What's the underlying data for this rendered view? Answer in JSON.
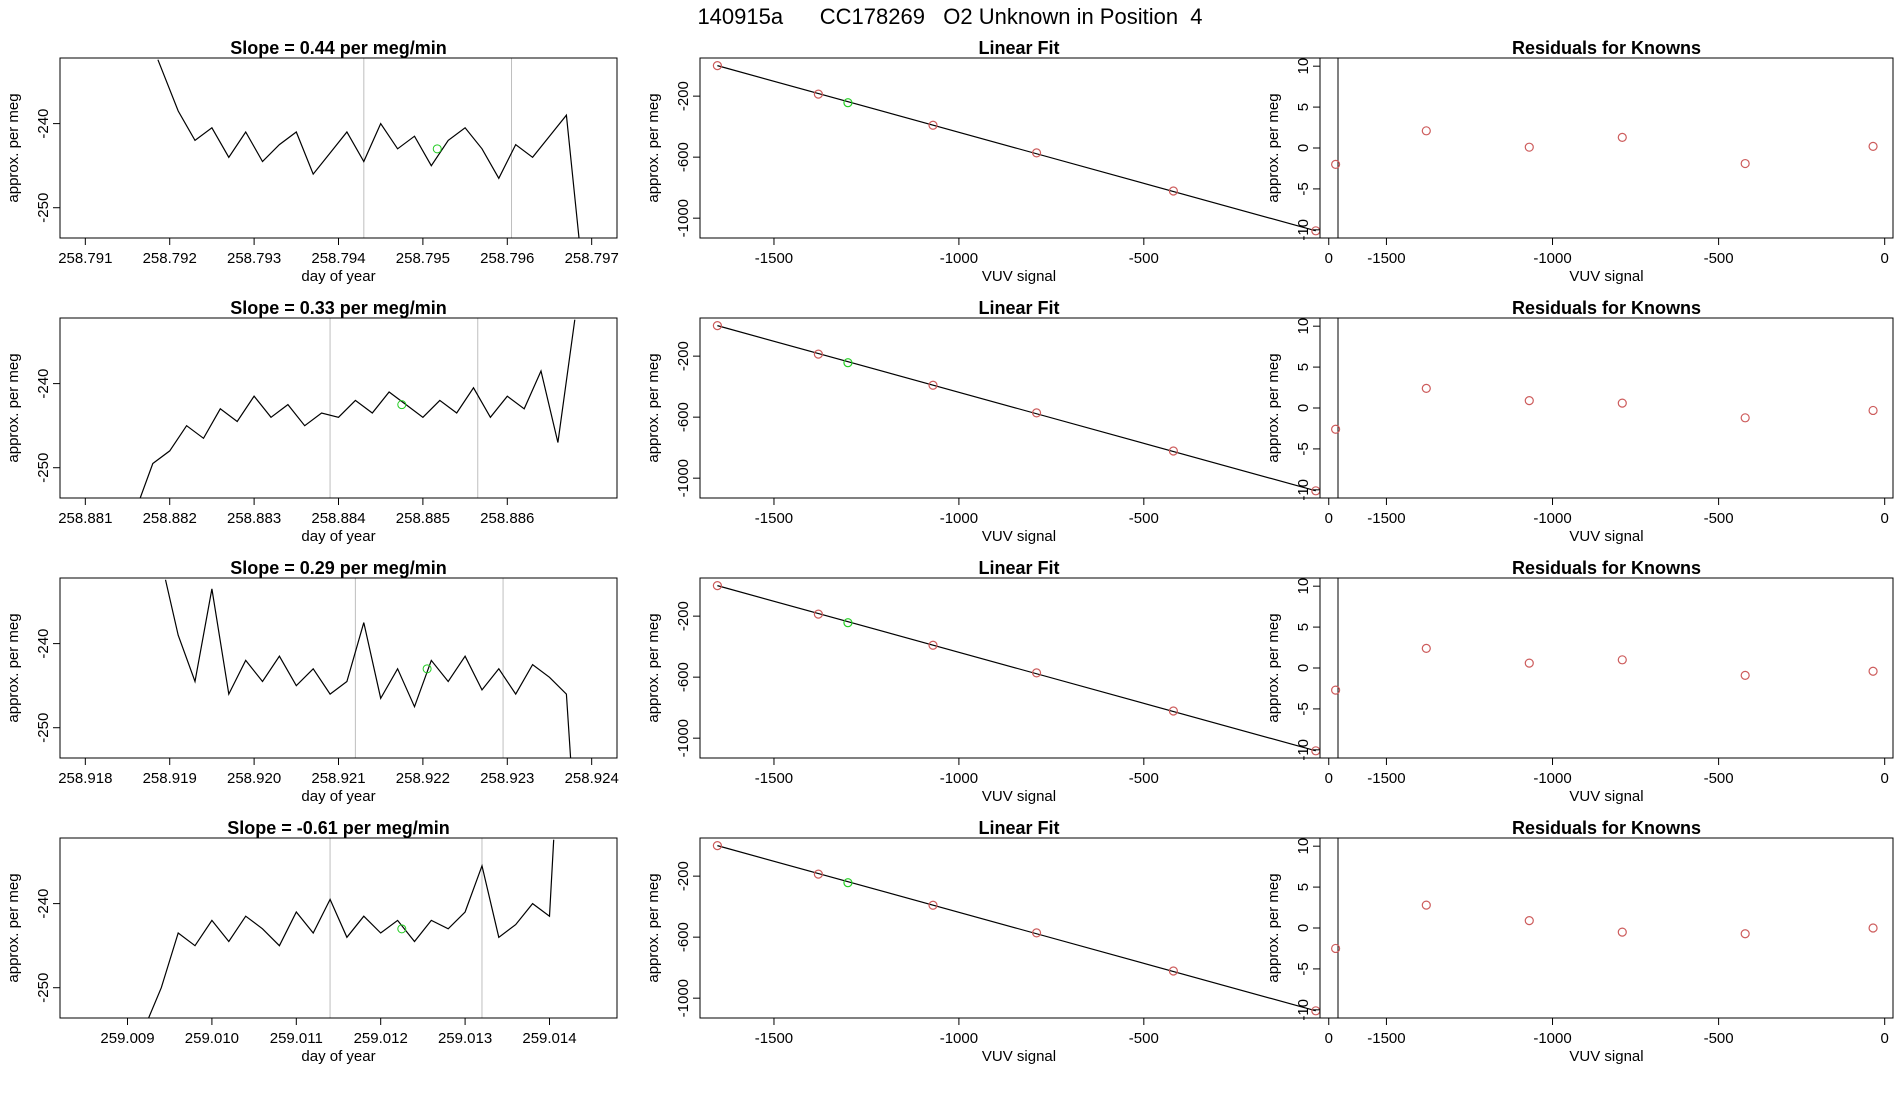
{
  "page": {
    "title": "140915a      CC178269   O2 Unknown in Position  4"
  },
  "colors": {
    "line": "#000000",
    "known_point": "#cd5c5c",
    "unknown_point": "#22cc22",
    "guide": "#bfbfbf"
  },
  "chart_data": [
    {
      "id": "r1-time",
      "type": "line",
      "title": "Slope =  0.44  per meg/min",
      "xlabel": "day of year",
      "ylabel": "approx. per meg",
      "xlim": [
        258.7907,
        258.7973
      ],
      "ylim": [
        -253.6,
        -232.2
      ],
      "x_ticks": [
        258.791,
        258.792,
        258.793,
        258.794,
        258.795,
        258.796,
        258.797
      ],
      "x_tick_labels": [
        "258.791",
        "258.792",
        "258.793",
        "258.794",
        "258.795",
        "258.796",
        "258.797"
      ],
      "y_ticks": [
        -240,
        -250
      ],
      "y_tick_labels": [
        "-240",
        "-250"
      ],
      "vlines": [
        258.7943,
        258.79605
      ],
      "line_x": [
        258.79186,
        258.7921,
        258.7923,
        258.7925,
        258.7927,
        258.7929,
        258.7931,
        258.7933,
        258.7935,
        258.7937,
        258.7939,
        258.7941,
        258.7943,
        258.7945,
        258.7947,
        258.7949,
        258.7951,
        258.7953,
        258.7955,
        258.7957,
        258.7959,
        258.7961,
        258.7963,
        258.7965,
        258.7967,
        258.79685
      ],
      "line_y": [
        -232.4,
        -238.5,
        -242.0,
        -240.5,
        -244.0,
        -241.0,
        -244.5,
        -242.5,
        -241.0,
        -246.0,
        -243.5,
        -241.0,
        -244.5,
        -240.0,
        -243.0,
        -241.5,
        -245.0,
        -242.0,
        -240.5,
        -243.0,
        -246.5,
        -242.5,
        -244.0,
        -241.5,
        -239.0,
        -253.6
      ],
      "marker": {
        "x": 258.79517,
        "y": -243.0
      }
    },
    {
      "id": "r1-fit",
      "type": "scatter",
      "title": "Linear Fit",
      "xlabel": "VUV signal",
      "ylabel": "approx. per meg",
      "xlim": [
        -1700,
        25
      ],
      "ylim": [
        -1130,
        50
      ],
      "x_ticks": [
        -1500,
        -1000,
        -500,
        0
      ],
      "x_tick_labels": [
        "-1500",
        "-1000",
        "-500",
        "0"
      ],
      "y_ticks": [
        -200,
        -600,
        -1000
      ],
      "y_tick_labels": [
        "-200",
        "-600",
        "-1000"
      ],
      "fit_line": [
        [
          -1653,
          0
        ],
        [
          -35,
          -1083
        ]
      ],
      "known_x": [
        -1653,
        -1380,
        -1070,
        -790,
        -420,
        -35
      ],
      "known_y": [
        0,
        -187,
        -391,
        -572,
        -822,
        -1083
      ],
      "unknown": {
        "x": -1300,
        "y": -243
      }
    },
    {
      "id": "r1-resid",
      "type": "scatter",
      "title": "Residuals for Knowns",
      "xlabel": "VUV signal",
      "ylabel": "approx. per meg",
      "xlim": [
        -1700,
        25
      ],
      "ylim": [
        -11,
        11
      ],
      "x_ticks": [
        -1500,
        -1000,
        -500,
        0
      ],
      "x_tick_labels": [
        "-1500",
        "-1000",
        "-500",
        "0"
      ],
      "y_ticks": [
        10,
        5,
        0,
        -5,
        -10
      ],
      "y_tick_labels": [
        "10",
        "5",
        "0",
        "-5",
        "-10"
      ],
      "known_x": [
        -1653,
        -1380,
        -1070,
        -790,
        -420,
        -35
      ],
      "known_y": [
        -2.0,
        2.1,
        0.1,
        1.3,
        -1.9,
        0.2
      ]
    },
    {
      "id": "r2-time",
      "type": "line",
      "title": "Slope =  0.33  per meg/min",
      "xlabel": "day of year",
      "ylabel": "approx. per meg",
      "xlim": [
        258.8807,
        258.8873
      ],
      "ylim": [
        -253.6,
        -232.2
      ],
      "x_ticks": [
        258.881,
        258.882,
        258.883,
        258.884,
        258.885,
        258.886
      ],
      "x_tick_labels": [
        "258.881",
        "258.882",
        "258.883",
        "258.884",
        "258.885",
        "258.886"
      ],
      "y_ticks": [
        -240,
        -250
      ],
      "y_tick_labels": [
        "-240",
        "-250"
      ],
      "vlines": [
        258.8839,
        258.88565
      ],
      "line_x": [
        258.88165,
        258.8818,
        258.882,
        258.8822,
        258.8824,
        258.8826,
        258.8828,
        258.883,
        258.8832,
        258.8834,
        258.8836,
        258.8838,
        258.884,
        258.8842,
        258.8844,
        258.8846,
        258.8848,
        258.885,
        258.8852,
        258.8854,
        258.8856,
        258.8858,
        258.886,
        258.8862,
        258.8864,
        258.8866,
        258.8868
      ],
      "line_y": [
        -253.6,
        -249.5,
        -248.0,
        -245.0,
        -246.5,
        -243.0,
        -244.5,
        -241.5,
        -244.0,
        -242.5,
        -245.0,
        -243.5,
        -244.0,
        -242.0,
        -243.5,
        -241.0,
        -242.5,
        -244.0,
        -242.0,
        -243.5,
        -240.5,
        -244.0,
        -241.5,
        -243.0,
        -238.5,
        -247.0,
        -232.4
      ],
      "marker": {
        "x": 258.88475,
        "y": -242.5
      }
    },
    {
      "id": "r2-fit",
      "type": "scatter",
      "title": "Linear Fit",
      "xlabel": "VUV signal",
      "ylabel": "approx. per meg",
      "xlim": [
        -1700,
        25
      ],
      "ylim": [
        -1130,
        50
      ],
      "x_ticks": [
        -1500,
        -1000,
        -500,
        0
      ],
      "x_tick_labels": [
        "-1500",
        "-1000",
        "-500",
        "0"
      ],
      "y_ticks": [
        -200,
        -600,
        -1000
      ],
      "y_tick_labels": [
        "-200",
        "-600",
        "-1000"
      ],
      "fit_line": [
        [
          -1653,
          0
        ],
        [
          -35,
          -1083
        ]
      ],
      "known_x": [
        -1653,
        -1380,
        -1070,
        -790,
        -420,
        -35
      ],
      "known_y": [
        0,
        -187,
        -391,
        -572,
        -822,
        -1083
      ],
      "unknown": {
        "x": -1300,
        "y": -243
      }
    },
    {
      "id": "r2-resid",
      "type": "scatter",
      "title": "Residuals for Knowns",
      "xlabel": "VUV signal",
      "ylabel": "approx. per meg",
      "xlim": [
        -1700,
        25
      ],
      "ylim": [
        -11,
        11
      ],
      "x_ticks": [
        -1500,
        -1000,
        -500,
        0
      ],
      "x_tick_labels": [
        "-1500",
        "-1000",
        "-500",
        "0"
      ],
      "y_ticks": [
        10,
        5,
        0,
        -5,
        -10
      ],
      "y_tick_labels": [
        "10",
        "5",
        "0",
        "-5",
        "-10"
      ],
      "known_x": [
        -1653,
        -1380,
        -1070,
        -790,
        -420,
        -35
      ],
      "known_y": [
        -2.6,
        2.4,
        0.9,
        0.6,
        -1.2,
        -0.3
      ]
    },
    {
      "id": "r3-time",
      "type": "line",
      "title": "Slope =  0.29  per meg/min",
      "xlabel": "day of year",
      "ylabel": "approx. per meg",
      "xlim": [
        258.9177,
        258.9243
      ],
      "ylim": [
        -253.6,
        -232.2
      ],
      "x_ticks": [
        258.918,
        258.919,
        258.92,
        258.921,
        258.922,
        258.923,
        258.924
      ],
      "x_tick_labels": [
        "258.918",
        "258.919",
        "258.920",
        "258.921",
        "258.922",
        "258.923",
        "258.924"
      ],
      "y_ticks": [
        -240,
        -250
      ],
      "y_tick_labels": [
        "-240",
        "-250"
      ],
      "vlines": [
        258.9212,
        258.92295
      ],
      "line_x": [
        258.91895,
        258.9191,
        258.9193,
        258.9195,
        258.9197,
        258.9199,
        258.9201,
        258.9203,
        258.9205,
        258.9207,
        258.9209,
        258.9211,
        258.9213,
        258.9215,
        258.9217,
        258.9219,
        258.9221,
        258.9223,
        258.9225,
        258.9227,
        258.9229,
        258.9231,
        258.9233,
        258.9235,
        258.9237,
        258.92375
      ],
      "line_y": [
        -232.4,
        -239.0,
        -244.5,
        -233.5,
        -246.0,
        -242.0,
        -244.5,
        -241.5,
        -245.0,
        -243.0,
        -246.0,
        -244.5,
        -237.5,
        -246.5,
        -243.0,
        -247.5,
        -242.0,
        -244.5,
        -241.5,
        -245.5,
        -243.0,
        -246.0,
        -242.5,
        -244.0,
        -246.0,
        -253.6
      ],
      "marker": {
        "x": 258.92205,
        "y": -243.0
      }
    },
    {
      "id": "r3-fit",
      "type": "scatter",
      "title": "Linear Fit",
      "xlabel": "VUV signal",
      "ylabel": "approx. per meg",
      "xlim": [
        -1700,
        25
      ],
      "ylim": [
        -1130,
        50
      ],
      "x_ticks": [
        -1500,
        -1000,
        -500,
        0
      ],
      "x_tick_labels": [
        "-1500",
        "-1000",
        "-500",
        "0"
      ],
      "y_ticks": [
        -200,
        -600,
        -1000
      ],
      "y_tick_labels": [
        "-200",
        "-600",
        "-1000"
      ],
      "fit_line": [
        [
          -1653,
          0
        ],
        [
          -35,
          -1083
        ]
      ],
      "known_x": [
        -1653,
        -1380,
        -1070,
        -790,
        -420,
        -35
      ],
      "known_y": [
        0,
        -187,
        -391,
        -572,
        -822,
        -1083
      ],
      "unknown": {
        "x": -1300,
        "y": -243
      }
    },
    {
      "id": "r3-resid",
      "type": "scatter",
      "title": "Residuals for Knowns",
      "xlabel": "VUV signal",
      "ylabel": "approx. per meg",
      "xlim": [
        -1700,
        25
      ],
      "ylim": [
        -11,
        11
      ],
      "x_ticks": [
        -1500,
        -1000,
        -500,
        0
      ],
      "x_tick_labels": [
        "-1500",
        "-1000",
        "-500",
        "0"
      ],
      "y_ticks": [
        10,
        5,
        0,
        -5,
        -10
      ],
      "y_tick_labels": [
        "10",
        "5",
        "0",
        "-5",
        "-10"
      ],
      "known_x": [
        -1653,
        -1380,
        -1070,
        -790,
        -420,
        -35
      ],
      "known_y": [
        -2.7,
        2.4,
        0.6,
        1.0,
        -0.9,
        -0.4
      ]
    },
    {
      "id": "r4-time",
      "type": "line",
      "title": "Slope =  -0.61  per meg/min",
      "xlabel": "day of year",
      "ylabel": "approx. per meg",
      "xlim": [
        259.0082,
        259.0148
      ],
      "ylim": [
        -253.6,
        -232.2
      ],
      "x_ticks": [
        259.009,
        259.01,
        259.011,
        259.012,
        259.013,
        259.014
      ],
      "x_tick_labels": [
        "259.009",
        "259.010",
        "259.011",
        "259.012",
        "259.013",
        "259.014"
      ],
      "y_ticks": [
        -240,
        -250
      ],
      "y_tick_labels": [
        "-240",
        "-250"
      ],
      "vlines": [
        259.0114,
        259.0132
      ],
      "line_x": [
        259.00925,
        259.0094,
        259.0096,
        259.0098,
        259.01,
        259.0102,
        259.0104,
        259.0106,
        259.0108,
        259.011,
        259.0112,
        259.0114,
        259.0116,
        259.0118,
        259.012,
        259.0122,
        259.0124,
        259.0126,
        259.0128,
        259.013,
        259.0132,
        259.0134,
        259.0136,
        259.0138,
        259.014,
        259.01405
      ],
      "line_y": [
        -253.6,
        -250.0,
        -243.5,
        -245.0,
        -242.0,
        -244.5,
        -241.5,
        -243.0,
        -245.0,
        -241.0,
        -243.5,
        -239.5,
        -244.0,
        -241.5,
        -243.5,
        -242.0,
        -244.5,
        -242.0,
        -243.0,
        -241.0,
        -235.5,
        -244.0,
        -242.5,
        -240.0,
        -241.5,
        -232.4
      ],
      "marker": {
        "x": 259.01225,
        "y": -243.0
      }
    },
    {
      "id": "r4-fit",
      "type": "scatter",
      "title": "Linear Fit",
      "xlabel": "VUV signal",
      "ylabel": "approx. per meg",
      "xlim": [
        -1700,
        25
      ],
      "ylim": [
        -1130,
        50
      ],
      "x_ticks": [
        -1500,
        -1000,
        -500,
        0
      ],
      "x_tick_labels": [
        "-1500",
        "-1000",
        "-500",
        "0"
      ],
      "y_ticks": [
        -200,
        -600,
        -1000
      ],
      "y_tick_labels": [
        "-200",
        "-600",
        "-1000"
      ],
      "fit_line": [
        [
          -1653,
          0
        ],
        [
          -35,
          -1083
        ]
      ],
      "known_x": [
        -1653,
        -1380,
        -1070,
        -790,
        -420,
        -35
      ],
      "known_y": [
        0,
        -187,
        -391,
        -572,
        -822,
        -1083
      ],
      "unknown": {
        "x": -1300,
        "y": -243
      }
    },
    {
      "id": "r4-resid",
      "type": "scatter",
      "title": "Residuals for Knowns",
      "xlabel": "VUV signal",
      "ylabel": "approx. per meg",
      "xlim": [
        -1700,
        25
      ],
      "ylim": [
        -11,
        11
      ],
      "x_ticks": [
        -1500,
        -1000,
        -500,
        0
      ],
      "x_tick_labels": [
        "-1500",
        "-1000",
        "-500",
        "0"
      ],
      "y_ticks": [
        10,
        5,
        0,
        -5,
        -10
      ],
      "y_tick_labels": [
        "10",
        "5",
        "0",
        "-5",
        "-10"
      ],
      "known_x": [
        -1653,
        -1380,
        -1070,
        -790,
        -420,
        -35
      ],
      "known_y": [
        -2.5,
        2.8,
        0.9,
        -0.5,
        -0.7,
        0.0
      ]
    }
  ]
}
